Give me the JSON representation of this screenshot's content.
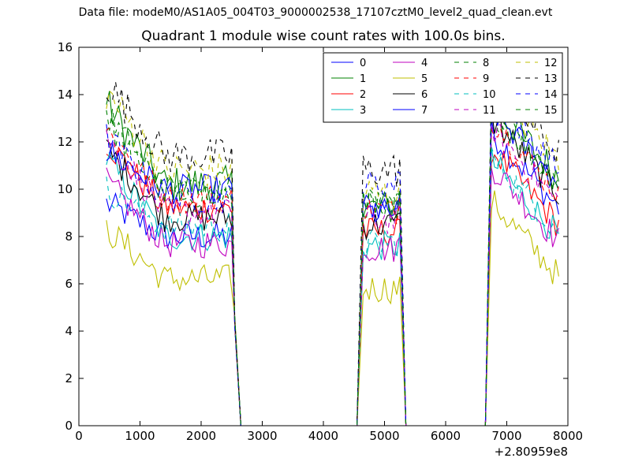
{
  "suptitle": "Data file: modeM0/AS1A05_004T03_9000002538_17107cztM0_level2_quad_clean.evt",
  "chart_data": {
    "type": "line",
    "title": "Quadrant 1 module wise count rates with 100.0s bins.",
    "xlabel": "",
    "ylabel": "",
    "x_offset_label": "+2.80959e8",
    "xlim": [
      0,
      8000
    ],
    "ylim": [
      0,
      16
    ],
    "xticks": [
      0,
      1000,
      2000,
      3000,
      4000,
      5000,
      6000,
      7000,
      8000
    ],
    "yticks": [
      0,
      2,
      4,
      6,
      8,
      10,
      12,
      14,
      16
    ],
    "grid": false,
    "legend_position": "top-right",
    "segments": [
      {
        "x_start": 450,
        "x_end": 2550,
        "drop_to": 2650
      },
      {
        "x_start": 4650,
        "x_end": 5250,
        "rise_from": 4550,
        "drop_to": 5350
      },
      {
        "x_start": 6750,
        "x_end": 7850,
        "rise_from": 6650
      }
    ],
    "series": [
      {
        "name": "0",
        "color": "#0000ff",
        "dash": "solid",
        "seg_means": [
          8.0,
          9.3,
          10.2
        ],
        "start_peak": 9.4,
        "amp": 0.4
      },
      {
        "name": "1",
        "color": "#008000",
        "dash": "solid",
        "seg_means": [
          10.2,
          9.2,
          11.5
        ],
        "start_peak": 13.6,
        "amp": 0.5
      },
      {
        "name": "2",
        "color": "#ff0000",
        "dash": "solid",
        "seg_means": [
          9.2,
          8.2,
          9.5
        ],
        "start_peak": 12.0,
        "amp": 0.4
      },
      {
        "name": "3",
        "color": "#00bfbf",
        "dash": "solid",
        "seg_means": [
          8.0,
          7.6,
          9.0
        ],
        "start_peak": 11.3,
        "amp": 0.4
      },
      {
        "name": "4",
        "color": "#bf00bf",
        "dash": "solid",
        "seg_means": [
          7.7,
          7.5,
          8.8
        ],
        "start_peak": 10.3,
        "amp": 0.4
      },
      {
        "name": "5",
        "color": "#bfbf00",
        "dash": "solid",
        "seg_means": [
          6.2,
          5.8,
          7.3
        ],
        "start_peak": 8.3,
        "amp": 0.4
      },
      {
        "name": "6",
        "color": "#000000",
        "dash": "solid",
        "seg_means": [
          8.8,
          8.5,
          10.8
        ],
        "start_peak": 11.7,
        "amp": 0.4
      },
      {
        "name": "7",
        "color": "#0000ff",
        "dash": "solid",
        "seg_means": [
          10.0,
          9.0,
          11.2
        ],
        "start_peak": 11.6,
        "amp": 0.4
      },
      {
        "name": "8",
        "color": "#008000",
        "dash": "dashed",
        "seg_means": [
          9.8,
          9.3,
          11.2
        ],
        "start_peak": 12.8,
        "amp": 0.4
      },
      {
        "name": "9",
        "color": "#ff0000",
        "dash": "dashed",
        "seg_means": [
          9.6,
          9.1,
          10.8
        ],
        "start_peak": 12.5,
        "amp": 0.4
      },
      {
        "name": "10",
        "color": "#00bfbf",
        "dash": "dashed",
        "seg_means": [
          8.4,
          7.7,
          9.2
        ],
        "start_peak": 10.0,
        "amp": 0.4
      },
      {
        "name": "11",
        "color": "#bf00bf",
        "dash": "dashed",
        "seg_means": [
          9.0,
          8.7,
          10.4
        ],
        "start_peak": 12.2,
        "amp": 0.4
      },
      {
        "name": "12",
        "color": "#bfbf00",
        "dash": "dashed",
        "seg_means": [
          10.8,
          9.8,
          12.2
        ],
        "start_peak": 14.1,
        "amp": 0.5
      },
      {
        "name": "13",
        "color": "#000000",
        "dash": "dashed",
        "seg_means": [
          11.4,
          10.8,
          12.5
        ],
        "start_peak": 14.5,
        "amp": 0.5
      },
      {
        "name": "14",
        "color": "#0000ff",
        "dash": "dashed",
        "seg_means": [
          9.6,
          10.2,
          11.8
        ],
        "start_peak": 12.2,
        "amp": 0.4
      },
      {
        "name": "15",
        "color": "#008000",
        "dash": "dashed",
        "seg_means": [
          10.0,
          9.5,
          11.5
        ],
        "start_peak": 13.2,
        "amp": 0.4
      }
    ]
  }
}
